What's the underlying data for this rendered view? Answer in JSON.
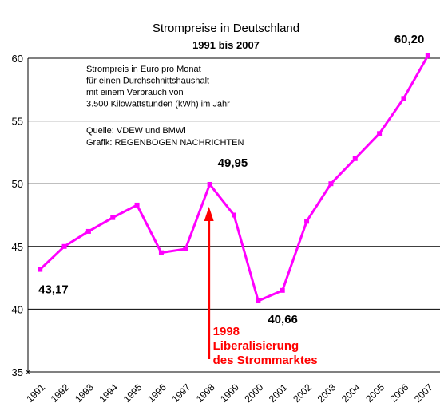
{
  "chart_data": {
    "type": "line",
    "title": "Strompreise in Deutschland",
    "subtitle": "1991 bis 2007",
    "notes": [
      "Strompreis in Euro pro Monat",
      "für einen Durchschnittshaushalt",
      "mit einem Verbrauch von",
      "3.500 Kilowattstunden (kWh) im Jahr"
    ],
    "source": [
      "Quelle: VDEW und BMWi",
      "Grafik: REGENBOGEN NACHRICHTEN"
    ],
    "categories": [
      "1991",
      "1992",
      "1993",
      "1994",
      "1995",
      "1996",
      "1997",
      "1998",
      "1999",
      "2000",
      "2001",
      "2002",
      "2003",
      "2004",
      "2005",
      "2006",
      "2007"
    ],
    "series": [
      {
        "color": "#ff00ff",
        "values": [
          43.17,
          45.0,
          46.2,
          47.3,
          48.3,
          44.5,
          44.8,
          49.95,
          47.5,
          40.66,
          41.5,
          47.0,
          50.0,
          52.0,
          54.0,
          56.8,
          60.2
        ]
      }
    ],
    "data_labels": [
      {
        "index": 0,
        "text": "43,17"
      },
      {
        "index": 7,
        "text": "49,95"
      },
      {
        "index": 9,
        "text": "40,66"
      },
      {
        "index": 16,
        "text": "60,20"
      }
    ],
    "annotation": {
      "index": 7,
      "lines": [
        "1998",
        "Liberalisierung",
        "des Strommarktes"
      ],
      "color": "#ff0000"
    },
    "ylim": [
      35,
      60
    ],
    "yticks": [
      35,
      40,
      45,
      50,
      55,
      60
    ],
    "grid": true,
    "xlabel": "",
    "ylabel": ""
  }
}
